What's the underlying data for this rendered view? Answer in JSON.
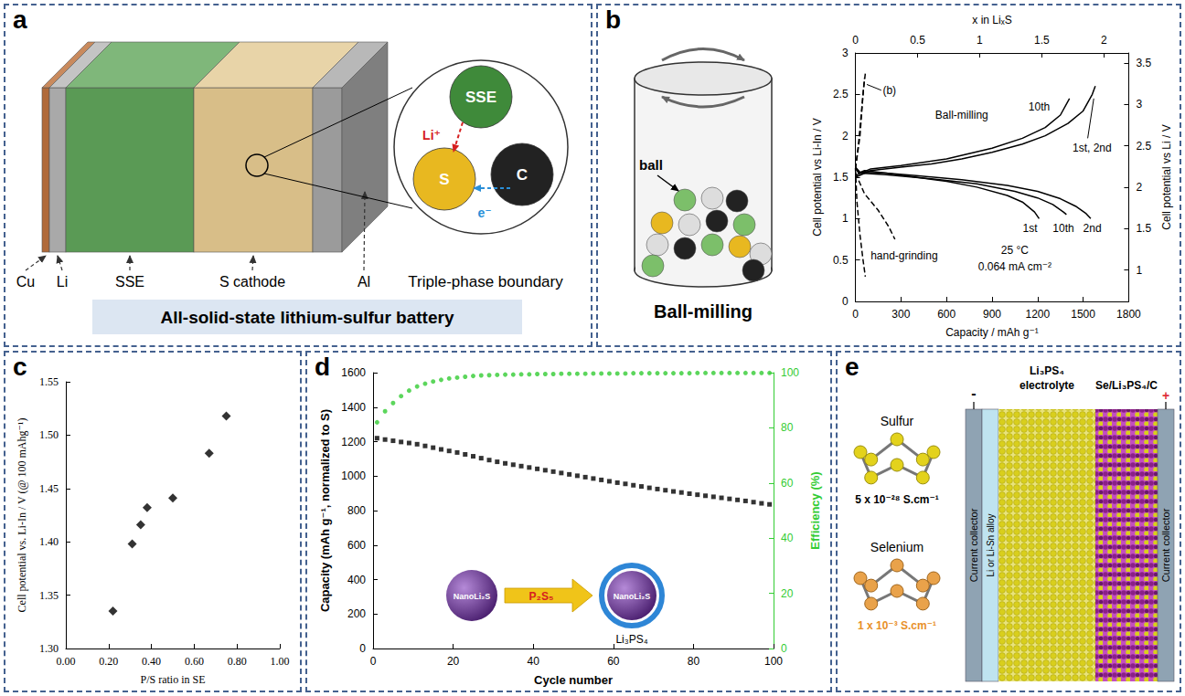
{
  "panel_letters": [
    "a",
    "b",
    "c",
    "d",
    "e"
  ],
  "panels": {
    "a": {
      "layers": [
        "Cu",
        "Li",
        "SSE",
        "S cathode",
        "Al"
      ],
      "particles": [
        "SSE",
        "S",
        "C"
      ],
      "ion": "Li⁺",
      "electron": "e⁻",
      "caption": "Triple-phase boundary",
      "banner": "All-solid-state lithium-sulfur battery"
    },
    "b": {
      "ball_label": "ball",
      "caption": "Ball-milling"
    },
    "d": {
      "inset": {
        "core": "NanoLi₂S",
        "reagent": "P₂S₅",
        "shell": "Li₃PS₄"
      }
    },
    "e": {
      "materials": [
        {
          "name": "Sulfur",
          "conductivity": "5 x 10⁻²⁸ S.cm⁻¹"
        },
        {
          "name": "Selenium",
          "conductivity": "1 x 10⁻³ S.cm⁻¹"
        }
      ],
      "electrolyte": "Li₃PS₄ electrolyte",
      "cathode": "Se/Li₃PS₄/C",
      "collector": "Current collector",
      "anode": "Li or Li-Sn alloy",
      "negative": "-",
      "positive": "+"
    }
  },
  "chart_data": [
    {
      "type": "line",
      "xlabel": "Capacity / mAh g⁻¹",
      "ylabel": "Cell potential vs Li-In / V",
      "y2label": "Cell potential vs Li / V",
      "x2label": "x in LiₓS",
      "xlim": [
        0,
        1800
      ],
      "xticks": [
        0,
        300,
        600,
        900,
        1200,
        1500,
        1800
      ],
      "ylim": [
        0,
        3
      ],
      "yticks": [
        0,
        0.5,
        1,
        1.5,
        2,
        2.5,
        3
      ],
      "y2lim": [
        0.62,
        3.62
      ],
      "y2ticks": [
        1,
        1.5,
        2,
        2.5,
        3,
        3.5
      ],
      "x2lim": [
        0,
        2.2
      ],
      "x2ticks": [
        0,
        0.5,
        1,
        1.5,
        2
      ],
      "grid": false,
      "annotations": [
        "Ball-milling",
        "10th",
        "1st, 2nd",
        "1st",
        "10th",
        "2nd",
        "(b)",
        "hand-grinding",
        "25 °C",
        "0.064 mA cm⁻²"
      ],
      "series": [
        {
          "x": [
            0,
            20,
            60,
            200,
            400,
            600,
            800,
            1000,
            1100,
            1180,
            1210
          ],
          "values": [
            1.62,
            1.55,
            1.58,
            1.55,
            1.5,
            1.45,
            1.38,
            1.28,
            1.2,
            1.08,
            1.0
          ],
          "color": "#000000",
          "line_style": "solid"
        },
        {
          "x": [
            0,
            30,
            200,
            400,
            700,
            1000,
            1200,
            1350,
            1450,
            1520,
            1550
          ],
          "values": [
            1.62,
            1.56,
            1.55,
            1.52,
            1.47,
            1.4,
            1.33,
            1.24,
            1.15,
            1.06,
            1.0
          ],
          "color": "#000000",
          "line_style": "solid"
        },
        {
          "x": [
            0,
            30,
            200,
            500,
            800,
            1050,
            1200,
            1300,
            1370,
            1390
          ],
          "values": [
            1.6,
            1.55,
            1.53,
            1.48,
            1.42,
            1.33,
            1.25,
            1.17,
            1.08,
            1.05
          ],
          "color": "#000000",
          "line_style": "solid"
        },
        {
          "x": [
            0,
            100,
            300,
            500,
            700,
            900,
            1100,
            1250,
            1400,
            1500,
            1560,
            1580
          ],
          "values": [
            1.5,
            1.58,
            1.62,
            1.66,
            1.72,
            1.8,
            1.9,
            2.0,
            2.15,
            2.3,
            2.5,
            2.6
          ],
          "color": "#000000",
          "line_style": "solid"
        },
        {
          "x": [
            0,
            100,
            300,
            600,
            900,
            1100,
            1250,
            1350,
            1410
          ],
          "values": [
            1.52,
            1.6,
            1.64,
            1.72,
            1.85,
            1.97,
            2.1,
            2.25,
            2.45
          ],
          "color": "#000000",
          "line_style": "solid"
        },
        {
          "x": [
            0,
            20,
            40,
            55,
            65
          ],
          "values": [
            1.6,
            1.9,
            2.3,
            2.6,
            2.75
          ],
          "color": "#000000",
          "line_style": "dashed"
        },
        {
          "x": [
            0,
            30,
            50,
            60
          ],
          "values": [
            1.6,
            2.0,
            2.5,
            2.7
          ],
          "color": "#000000",
          "line_style": "dashed"
        },
        {
          "x": [
            0,
            10,
            30,
            50,
            65
          ],
          "values": [
            1.6,
            1.2,
            0.8,
            0.5,
            0.3
          ],
          "color": "#000000",
          "line_style": "dashed"
        },
        {
          "x": [
            0,
            60,
            150,
            220,
            260
          ],
          "values": [
            1.55,
            1.3,
            1.1,
            0.9,
            0.75
          ],
          "color": "#000000",
          "line_style": "dashed"
        }
      ]
    },
    {
      "type": "scatter",
      "xlabel": "P/S ratio in SE",
      "ylabel": "Cell potential vs. Li-In / V (@ 100 mAhg⁻¹)",
      "x": [
        0.22,
        0.31,
        0.35,
        0.38,
        0.5,
        0.67,
        0.75
      ],
      "values": [
        1.335,
        1.398,
        1.416,
        1.432,
        1.441,
        1.483,
        1.518
      ],
      "marker": "diamond",
      "color": "#000000",
      "grid": false,
      "xlim": [
        0,
        1
      ],
      "xticks": [
        {
          "value": 0,
          "label": "0.00"
        },
        {
          "value": 0.2,
          "label": "0.20"
        },
        {
          "value": 0.4,
          "label": "0.40"
        },
        {
          "value": 0.6,
          "label": "0.60"
        },
        {
          "value": 0.8,
          "label": "0.80"
        },
        {
          "value": 1,
          "label": "1.00"
        }
      ],
      "ylim": [
        1.3,
        1.55
      ],
      "yticks": [
        {
          "value": 1.3,
          "label": "1.30"
        },
        {
          "value": 1.35,
          "label": "1.35"
        },
        {
          "value": 1.4,
          "label": "1.40"
        },
        {
          "value": 1.45,
          "label": "1.45"
        },
        {
          "value": 1.5,
          "label": "1.50"
        },
        {
          "value": 1.55,
          "label": "1.55"
        }
      ]
    },
    {
      "type": "scatter",
      "xlabel": "Cycle number",
      "ylabel": "Capacity (mAh g⁻¹, normalized to S)",
      "y2label": "Efficiency (%)",
      "grid": false,
      "xlim": [
        0,
        100
      ],
      "xticks": [
        0,
        20,
        40,
        60,
        80,
        100
      ],
      "ylim": [
        0,
        1600
      ],
      "yticks": [
        0,
        200,
        400,
        600,
        800,
        1000,
        1200,
        1400,
        1600
      ],
      "y2lim": [
        0,
        100
      ],
      "y2ticks": [
        0,
        20,
        40,
        60,
        80,
        100
      ],
      "x": [
        1,
        3,
        5,
        7,
        9,
        11,
        13,
        15,
        17,
        19,
        21,
        23,
        25,
        27,
        29,
        31,
        33,
        35,
        37,
        39,
        41,
        43,
        45,
        47,
        49,
        51,
        53,
        55,
        57,
        59,
        61,
        63,
        65,
        67,
        69,
        71,
        73,
        75,
        77,
        79,
        81,
        83,
        85,
        87,
        89,
        91,
        93,
        95,
        97,
        99
      ],
      "series": [
        {
          "color": "#000000",
          "marker": "square",
          "values": [
            1220,
            1212,
            1205,
            1198,
            1192,
            1185,
            1175,
            1165,
            1155,
            1146,
            1137,
            1126,
            1115,
            1104,
            1093,
            1083,
            1074,
            1066,
            1058,
            1050,
            1042,
            1034,
            1026,
            1018,
            1010,
            1002,
            994,
            986,
            978,
            970,
            962,
            955,
            947,
            940,
            932,
            925,
            918,
            911,
            905,
            898,
            892,
            886,
            880,
            874,
            868,
            862,
            856,
            849,
            842,
            836
          ]
        },
        {
          "color": "#33cc33",
          "marker": "circle",
          "axis": "y2",
          "values": [
            82,
            86,
            89,
            91.5,
            93.5,
            95,
            96,
            96.8,
            97.4,
            97.9,
            98.2,
            98.5,
            98.8,
            99,
            99.1,
            99.2,
            99.3,
            99.3,
            99.4,
            99.4,
            99.5,
            99.5,
            99.5,
            99.6,
            99.6,
            99.6,
            99.6,
            99.7,
            99.7,
            99.7,
            99.7,
            99.7,
            99.8,
            99.8,
            99.8,
            99.8,
            99.8,
            99.8,
            99.8,
            99.8,
            99.9,
            99.9,
            99.9,
            99.9,
            99.9,
            99.9,
            99.9,
            99.9,
            99.9,
            99.9
          ]
        }
      ]
    }
  ]
}
